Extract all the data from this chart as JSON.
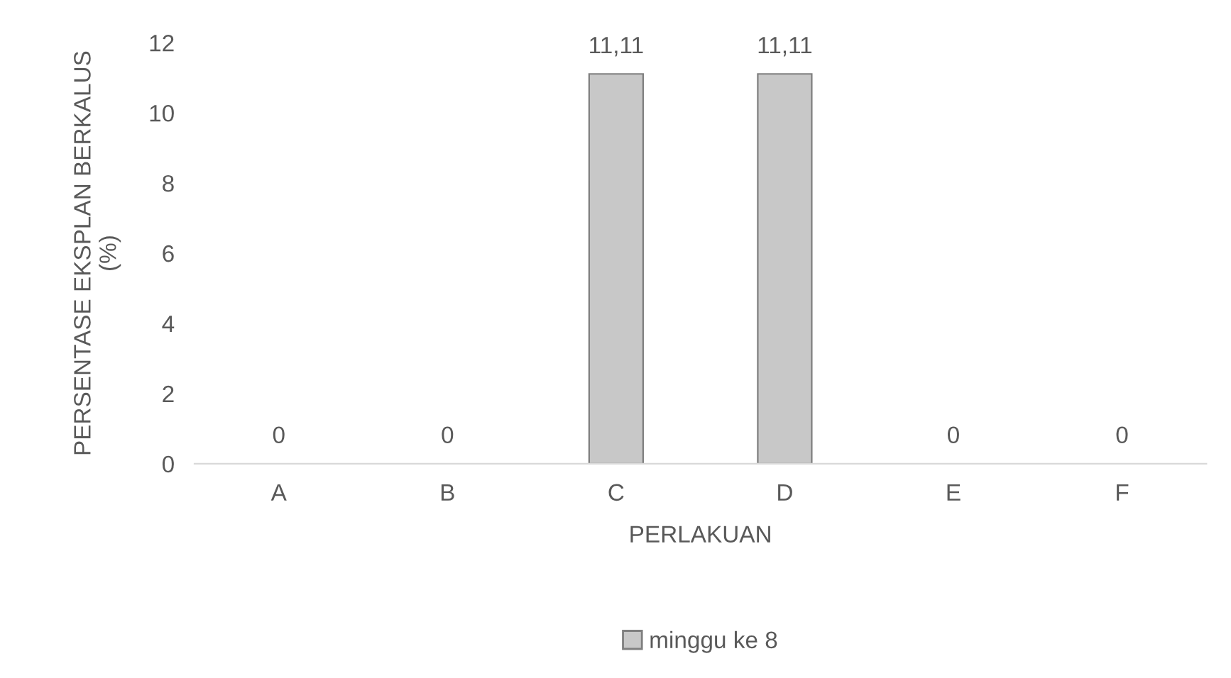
{
  "chart_data": {
    "type": "bar",
    "xlabel": "PERLAKUAN",
    "ylabel": "PERSENTASE EKSPLAN BERKALUS\n(%)",
    "categories": [
      "A",
      "B",
      "C",
      "D",
      "E",
      "F"
    ],
    "series": [
      {
        "name": "minggu ke 8",
        "color": "#c8c8c8",
        "values": [
          0,
          0,
          11.11,
          11.11,
          0,
          0
        ],
        "value_labels": [
          "0",
          "0",
          "11,11",
          "11,11",
          "0",
          "0"
        ]
      }
    ],
    "ylim": [
      0,
      12
    ],
    "yticks": [
      0,
      2,
      4,
      6,
      8,
      10,
      12
    ],
    "grid": false,
    "legend": "bottom"
  }
}
